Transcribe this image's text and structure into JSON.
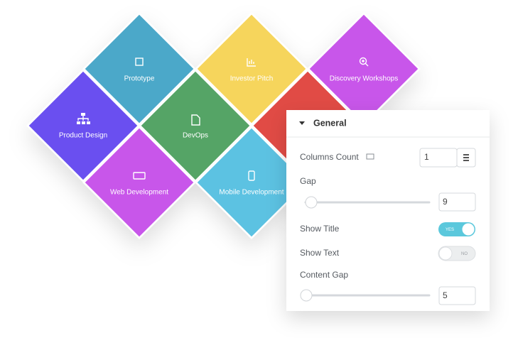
{
  "tiles": [
    {
      "label": "Prototype"
    },
    {
      "label": "Investor Pitch"
    },
    {
      "label": "Discovery Workshops"
    },
    {
      "label": "Product Design"
    },
    {
      "label": "DevOps"
    },
    {
      "label": "Web Development"
    },
    {
      "label": "Mobile Development"
    }
  ],
  "panel": {
    "title": "General",
    "fields": [
      {
        "label": "Columns Count",
        "value": 1
      },
      {
        "label": "Gap",
        "value": 9
      },
      {
        "label": "Show Title",
        "toggle": "YES"
      },
      {
        "label": "Show Text",
        "toggle": "NO"
      },
      {
        "label": "Content Gap",
        "value": 5
      }
    ]
  }
}
